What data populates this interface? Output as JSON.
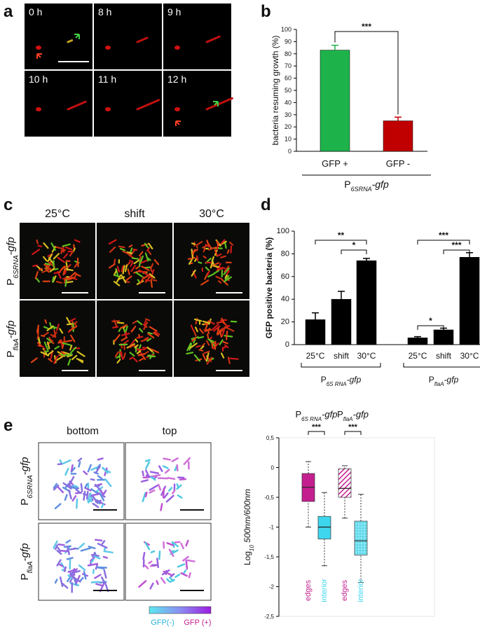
{
  "panels": {
    "a": {
      "letter": "a",
      "frames": [
        "0 h",
        "8 h",
        "9 h",
        "10 h",
        "11 h",
        "12 h"
      ]
    },
    "b": {
      "letter": "b"
    },
    "c": {
      "letter": "c",
      "columns": [
        "25°C",
        "shift",
        "30°C"
      ],
      "rows": [
        {
          "prefix": "P",
          "subscript": "6SRNA",
          "suffix": "-gfp"
        },
        {
          "prefix": "P",
          "subscript": "flaA",
          "suffix": "-gfp"
        }
      ]
    },
    "d": {
      "letter": "d"
    },
    "e": {
      "letter": "e",
      "columns": [
        "bottom",
        "top"
      ],
      "rows": [
        {
          "prefix": "P",
          "subscript": "6SRNA",
          "suffix": "-gfp"
        },
        {
          "prefix": "P",
          "subscript": "flaA",
          "suffix": "-gfp"
        }
      ],
      "colorbar": [
        "GFP(-)",
        "GFP (+)"
      ]
    }
  },
  "chart_data": [
    {
      "type": "bar",
      "ylabel": "bacteria resuming growth (%)",
      "categories": [
        "GFP +",
        "GFP -"
      ],
      "values": [
        83,
        25
      ],
      "errors": [
        4,
        3
      ],
      "colors": [
        "#1db34a",
        "#c00000"
      ],
      "ylim": [
        0,
        100
      ],
      "yticks": [
        0,
        10,
        20,
        30,
        40,
        50,
        60,
        70,
        80,
        90,
        100
      ],
      "significance": [
        {
          "label": "***",
          "pair": [
            0,
            1
          ]
        }
      ],
      "groups": [
        {
          "label": {
            "prefix": "P",
            "subscript": "6SRNA",
            "suffix": "-gfp"
          },
          "span": [
            0,
            1
          ]
        }
      ]
    },
    {
      "type": "bar",
      "ylabel": "GFP positive bacteria  (%)",
      "categories": [
        "25°C",
        "shift",
        "30°C",
        "25°C",
        "shift",
        "30°C"
      ],
      "values": [
        22,
        40,
        74,
        6,
        13,
        77
      ],
      "errors": [
        6,
        7,
        2,
        1,
        1.5,
        4
      ],
      "color": "#000000",
      "ylim": [
        0,
        100
      ],
      "yticks": [
        0,
        20,
        40,
        60,
        80,
        100
      ],
      "significance": [
        {
          "label": "**",
          "pair": [
            0,
            2
          ]
        },
        {
          "label": "*",
          "pair": [
            1,
            2
          ]
        },
        {
          "label": "***",
          "pair": [
            3,
            5
          ]
        },
        {
          "label": "***",
          "pair": [
            4,
            5
          ]
        },
        {
          "label": "*",
          "pair": [
            3,
            4
          ]
        }
      ],
      "groups": [
        {
          "label": {
            "prefix": "P",
            "subscript": "6S RNA",
            "suffix": "-gfp"
          },
          "span": [
            0,
            2
          ]
        },
        {
          "label": {
            "prefix": "P",
            "subscript": "flaA",
            "suffix": "-gfp"
          },
          "span": [
            3,
            5
          ]
        }
      ]
    },
    {
      "type": "box",
      "ylabel": {
        "prefix": "Log",
        "subscript": "10",
        "suffix": " 500nm/600nm"
      },
      "categories": [
        "edges",
        "interior",
        "edges",
        "interior"
      ],
      "colors": [
        "#c41f8f",
        "#3ed6ee",
        "#c41f8f",
        "#3ed6ee"
      ],
      "hatched": [
        false,
        false,
        true,
        true
      ],
      "boxes": [
        {
          "low": -1.0,
          "q1": -0.57,
          "median": -0.33,
          "q3": -0.1,
          "high": 0.1
        },
        {
          "low": -1.65,
          "q1": -1.2,
          "median": -1.0,
          "q3": -0.82,
          "high": -0.42
        },
        {
          "low": -0.85,
          "q1": -0.5,
          "median": -0.35,
          "q3": -0.02,
          "high": 0.03
        },
        {
          "low": -1.93,
          "q1": -1.47,
          "median": -1.23,
          "q3": -0.9,
          "high": -0.45
        }
      ],
      "ylim": [
        -2.5,
        0.5
      ],
      "yticks": [
        {
          "value": 0.5,
          "label": "0,5"
        },
        0,
        {
          "value": -0.5,
          "label": "-0,5"
        },
        -1,
        {
          "value": -1.5,
          "label": "-1,5"
        },
        -2,
        {
          "value": -2.5,
          "label": "-2,5"
        }
      ],
      "significance": [
        {
          "label": "***",
          "pair": [
            0,
            1
          ]
        },
        {
          "label": "***",
          "pair": [
            2,
            3
          ]
        }
      ],
      "groups": [
        {
          "label": {
            "prefix": "P",
            "subscript": "6S RNA",
            "suffix": "-gfp"
          },
          "span": [
            0,
            1
          ]
        },
        {
          "label": {
            "prefix": "P",
            "subscript": "flaA",
            "suffix": "-gfp"
          },
          "span": [
            2,
            3
          ]
        }
      ]
    }
  ]
}
